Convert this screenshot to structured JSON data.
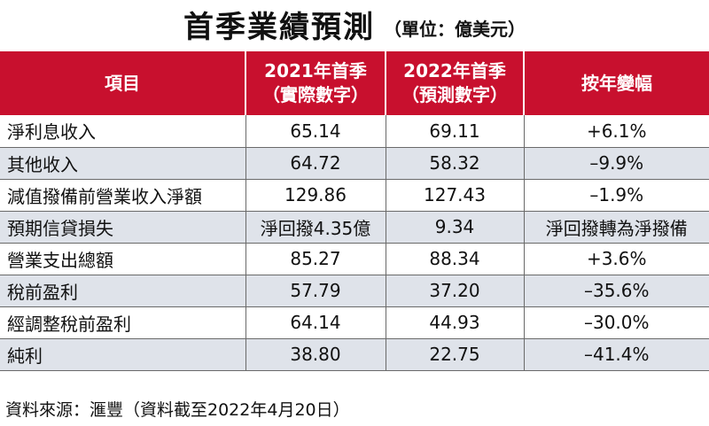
{
  "title": "首季業績預測",
  "unit": "（單位：億美元）",
  "headers": {
    "item": "項目",
    "col1_line1": "2021年首季",
    "col1_line2": "（實際數字）",
    "col2_line1": "2022年首季",
    "col2_line2": "（預測數字）",
    "change": "按年變幅"
  },
  "rows": [
    {
      "item": "淨利息收入",
      "q1_2021": "65.14",
      "q1_2022": "69.11",
      "change": "+6.1%"
    },
    {
      "item": "其他收入",
      "q1_2021": "64.72",
      "q1_2022": "58.32",
      "change": "–9.9%"
    },
    {
      "item": "減值撥備前營業收入淨額",
      "q1_2021": "129.86",
      "q1_2022": "127.43",
      "change": "–1.9%"
    },
    {
      "item": "預期信貸損失",
      "q1_2021": "淨回撥4.35億",
      "q1_2022": "9.34",
      "change": "淨回撥轉為淨撥備"
    },
    {
      "item": "營業支出總額",
      "q1_2021": "85.27",
      "q1_2022": "88.34",
      "change": "+3.6%"
    },
    {
      "item": "稅前盈利",
      "q1_2021": "57.79",
      "q1_2022": "37.20",
      "change": "–35.6%"
    },
    {
      "item": "經調整稅前盈利",
      "q1_2021": "64.14",
      "q1_2022": "44.93",
      "change": "–30.0%"
    },
    {
      "item": "純利",
      "q1_2021": "38.80",
      "q1_2022": "22.75",
      "change": "–41.4%"
    }
  ],
  "footer": "資料來源：滙豐（資料截至2022年4月20日）",
  "colors": {
    "header_bg": "#c8102e",
    "stripe": "#dfe3ea"
  }
}
